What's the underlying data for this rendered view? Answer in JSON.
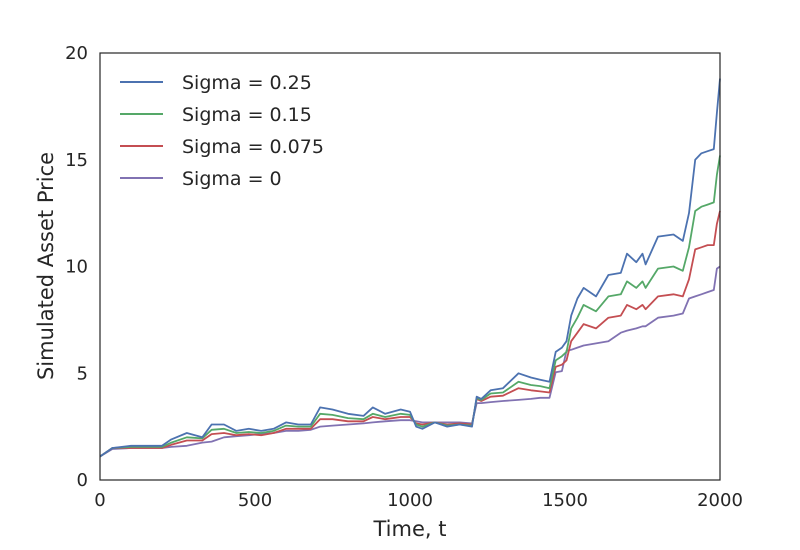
{
  "chart_data": {
    "type": "line",
    "title": "",
    "xlabel": "Time, t",
    "ylabel": "Simulated Asset Price",
    "xlim": [
      0,
      2000
    ],
    "ylim": [
      0,
      20
    ],
    "xticks": [
      0,
      500,
      1000,
      1500,
      2000
    ],
    "xtick_labels": [
      "0",
      "500",
      "1000",
      "1500",
      "2000"
    ],
    "yticks": [
      0,
      5,
      10,
      15,
      20
    ],
    "ytick_labels": [
      "0",
      "5",
      "10",
      "15",
      "20"
    ],
    "grid": false,
    "legend": "top-left",
    "series": [
      {
        "name": "Sigma = 0.25",
        "color": "#4c72b0",
        "x": [
          0,
          40,
          100,
          150,
          200,
          230,
          280,
          330,
          360,
          400,
          440,
          480,
          520,
          560,
          600,
          640,
          680,
          710,
          750,
          800,
          850,
          880,
          920,
          970,
          1000,
          1020,
          1040,
          1080,
          1120,
          1160,
          1200,
          1215,
          1230,
          1260,
          1300,
          1350,
          1390,
          1420,
          1450,
          1470,
          1490,
          1505,
          1520,
          1540,
          1560,
          1600,
          1640,
          1680,
          1700,
          1730,
          1750,
          1760,
          1800,
          1850,
          1880,
          1900,
          1920,
          1940,
          1960,
          1980,
          1990,
          2000
        ],
        "y": [
          1.1,
          1.5,
          1.6,
          1.6,
          1.6,
          1.9,
          2.2,
          2.0,
          2.6,
          2.6,
          2.3,
          2.4,
          2.3,
          2.4,
          2.7,
          2.6,
          2.6,
          3.4,
          3.3,
          3.1,
          3.0,
          3.4,
          3.1,
          3.3,
          3.2,
          2.5,
          2.4,
          2.7,
          2.5,
          2.6,
          2.5,
          3.9,
          3.8,
          4.2,
          4.3,
          5.0,
          4.8,
          4.7,
          4.6,
          6.0,
          6.2,
          6.5,
          7.7,
          8.5,
          9.0,
          8.6,
          9.6,
          9.7,
          10.6,
          10.2,
          10.6,
          10.1,
          11.4,
          11.5,
          11.2,
          12.5,
          15.0,
          15.3,
          15.4,
          15.5,
          17.2,
          18.8
        ]
      },
      {
        "name": "Sigma = 0.15",
        "color": "#55a868",
        "x": [
          0,
          40,
          100,
          150,
          200,
          230,
          280,
          330,
          360,
          400,
          440,
          480,
          520,
          560,
          600,
          640,
          680,
          710,
          750,
          800,
          850,
          880,
          920,
          970,
          1000,
          1020,
          1040,
          1080,
          1120,
          1160,
          1200,
          1215,
          1230,
          1260,
          1300,
          1350,
          1390,
          1420,
          1450,
          1470,
          1490,
          1505,
          1520,
          1540,
          1560,
          1600,
          1640,
          1680,
          1700,
          1730,
          1750,
          1760,
          1800,
          1850,
          1880,
          1900,
          1920,
          1940,
          1960,
          1980,
          1990,
          2000
        ],
        "y": [
          1.1,
          1.5,
          1.55,
          1.55,
          1.55,
          1.75,
          2.0,
          1.95,
          2.35,
          2.4,
          2.2,
          2.25,
          2.2,
          2.3,
          2.55,
          2.5,
          2.5,
          3.1,
          3.05,
          2.9,
          2.85,
          3.1,
          2.95,
          3.1,
          3.05,
          2.6,
          2.5,
          2.7,
          2.55,
          2.6,
          2.55,
          3.85,
          3.75,
          4.05,
          4.1,
          4.6,
          4.45,
          4.4,
          4.3,
          5.6,
          5.8,
          6.0,
          7.1,
          7.6,
          8.2,
          7.9,
          8.6,
          8.7,
          9.3,
          9.0,
          9.3,
          9.0,
          9.9,
          10.0,
          9.8,
          10.9,
          12.6,
          12.8,
          12.9,
          13.0,
          14.3,
          15.2
        ]
      },
      {
        "name": "Sigma = 0.075",
        "color": "#c44e52",
        "x": [
          0,
          40,
          100,
          150,
          200,
          230,
          280,
          330,
          360,
          400,
          440,
          480,
          520,
          560,
          600,
          640,
          680,
          710,
          750,
          800,
          850,
          880,
          920,
          970,
          1000,
          1020,
          1040,
          1080,
          1120,
          1160,
          1200,
          1215,
          1230,
          1260,
          1300,
          1350,
          1390,
          1420,
          1450,
          1470,
          1490,
          1505,
          1520,
          1540,
          1560,
          1600,
          1640,
          1680,
          1700,
          1730,
          1750,
          1760,
          1800,
          1850,
          1880,
          1900,
          1920,
          1940,
          1960,
          1980,
          1990,
          2000
        ],
        "y": [
          1.1,
          1.5,
          1.5,
          1.5,
          1.5,
          1.65,
          1.85,
          1.85,
          2.15,
          2.2,
          2.1,
          2.15,
          2.1,
          2.2,
          2.4,
          2.4,
          2.4,
          2.85,
          2.85,
          2.75,
          2.75,
          2.95,
          2.85,
          2.95,
          2.95,
          2.65,
          2.6,
          2.7,
          2.6,
          2.65,
          2.6,
          3.8,
          3.7,
          3.9,
          3.95,
          4.3,
          4.2,
          4.15,
          4.1,
          5.3,
          5.4,
          5.6,
          6.5,
          6.9,
          7.3,
          7.1,
          7.6,
          7.7,
          8.2,
          8.0,
          8.2,
          8.0,
          8.6,
          8.7,
          8.6,
          9.4,
          10.8,
          10.9,
          11.0,
          11.0,
          12.0,
          12.6
        ]
      },
      {
        "name": "Sigma = 0",
        "color": "#8172b2",
        "x": [
          0,
          40,
          100,
          150,
          200,
          230,
          280,
          330,
          360,
          400,
          440,
          480,
          520,
          560,
          600,
          640,
          680,
          710,
          750,
          800,
          850,
          880,
          920,
          970,
          1000,
          1020,
          1040,
          1080,
          1120,
          1160,
          1200,
          1215,
          1230,
          1260,
          1300,
          1350,
          1390,
          1420,
          1450,
          1470,
          1490,
          1505,
          1520,
          1540,
          1560,
          1600,
          1640,
          1680,
          1700,
          1730,
          1750,
          1760,
          1800,
          1850,
          1880,
          1900,
          1920,
          1940,
          1960,
          1980,
          1990,
          2000
        ],
        "y": [
          1.1,
          1.45,
          1.5,
          1.5,
          1.5,
          1.55,
          1.6,
          1.75,
          1.8,
          2.0,
          2.05,
          2.1,
          2.15,
          2.2,
          2.3,
          2.3,
          2.35,
          2.5,
          2.55,
          2.6,
          2.65,
          2.7,
          2.75,
          2.8,
          2.8,
          2.75,
          2.7,
          2.7,
          2.7,
          2.7,
          2.65,
          3.6,
          3.6,
          3.65,
          3.7,
          3.75,
          3.8,
          3.85,
          3.85,
          5.05,
          5.1,
          6.05,
          6.1,
          6.2,
          6.3,
          6.4,
          6.5,
          6.9,
          7.0,
          7.1,
          7.2,
          7.2,
          7.6,
          7.7,
          7.8,
          8.5,
          8.6,
          8.7,
          8.8,
          8.9,
          9.9,
          10.0
        ]
      }
    ]
  }
}
